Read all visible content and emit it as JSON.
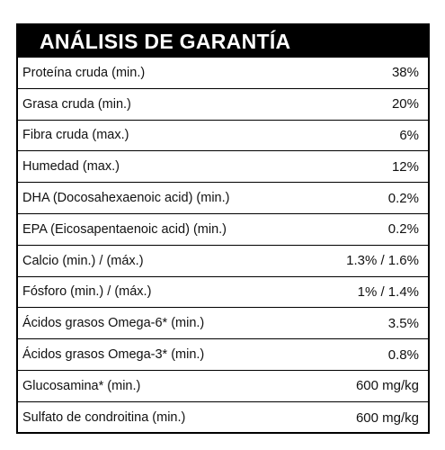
{
  "title": "ANÁLISIS DE GARANTÍA",
  "rows": [
    {
      "label": "Proteína cruda (min.)",
      "value": "38%"
    },
    {
      "label": "Grasa cruda (min.)",
      "value": "20%"
    },
    {
      "label": "Fibra cruda (max.)",
      "value": "6%"
    },
    {
      "label": "Humedad (max.)",
      "value": "12%"
    },
    {
      "label": "DHA (Docosahexaenoic acid) (min.)",
      "value": "0.2%"
    },
    {
      "label": "EPA (Eicosapentaenoic acid) (min.)",
      "value": "0.2%"
    },
    {
      "label": "Calcio (min.) / (máx.)",
      "value": "1.3% / 1.6%"
    },
    {
      "label": "Fósforo (min.) / (máx.)",
      "value": "1% / 1.4%"
    },
    {
      "label": "Ácidos grasos Omega-6* (min.)",
      "value": "3.5%"
    },
    {
      "label": "Ácidos grasos Omega-3* (min.)",
      "value": "0.8%"
    },
    {
      "label": "Glucosamina* (min.)",
      "value": "600 mg/kg"
    },
    {
      "label": "Sulfato de condroitina (min.)",
      "value": "600 mg/kg"
    }
  ]
}
